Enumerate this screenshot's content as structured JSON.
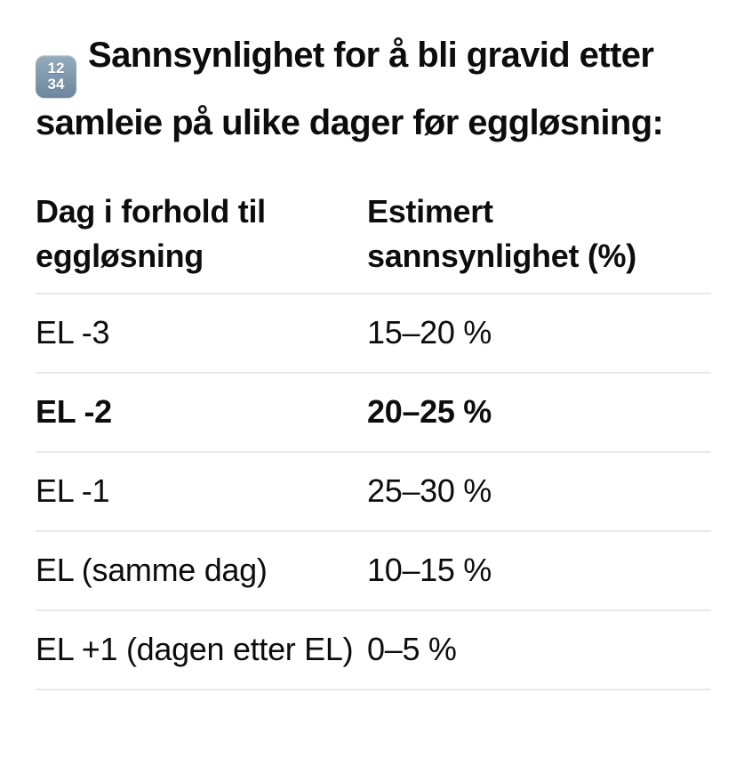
{
  "page": {
    "background_color": "#ffffff",
    "text_color": "#0d0d0d",
    "divider_color": "#e8e8e8"
  },
  "heading": {
    "icon": {
      "name": "input-numbers-emoji",
      "top_digits": "12",
      "bottom_digits": "34",
      "background_color": "#7e97ac",
      "digit_color": "#ffffff"
    },
    "text": "Sannsynlighet for å bli gravid etter samleie på ulike dager før eggløsning:"
  },
  "table": {
    "columns": [
      {
        "label": "Dag i forhold til eggløsning"
      },
      {
        "label": "Estimert sannsynlighet (%)"
      }
    ],
    "rows": [
      {
        "day": "EL -3",
        "probability": "15–20 %",
        "bold": false
      },
      {
        "day": "EL -2",
        "probability": "20–25 %",
        "bold": true
      },
      {
        "day": "EL -1",
        "probability": "25–30 %",
        "bold": false
      },
      {
        "day": "EL (samme dag)",
        "probability": "10–15 %",
        "bold": false
      },
      {
        "day": "EL +1 (dagen etter EL)",
        "probability": "0–5 %",
        "bold": false
      }
    ]
  }
}
